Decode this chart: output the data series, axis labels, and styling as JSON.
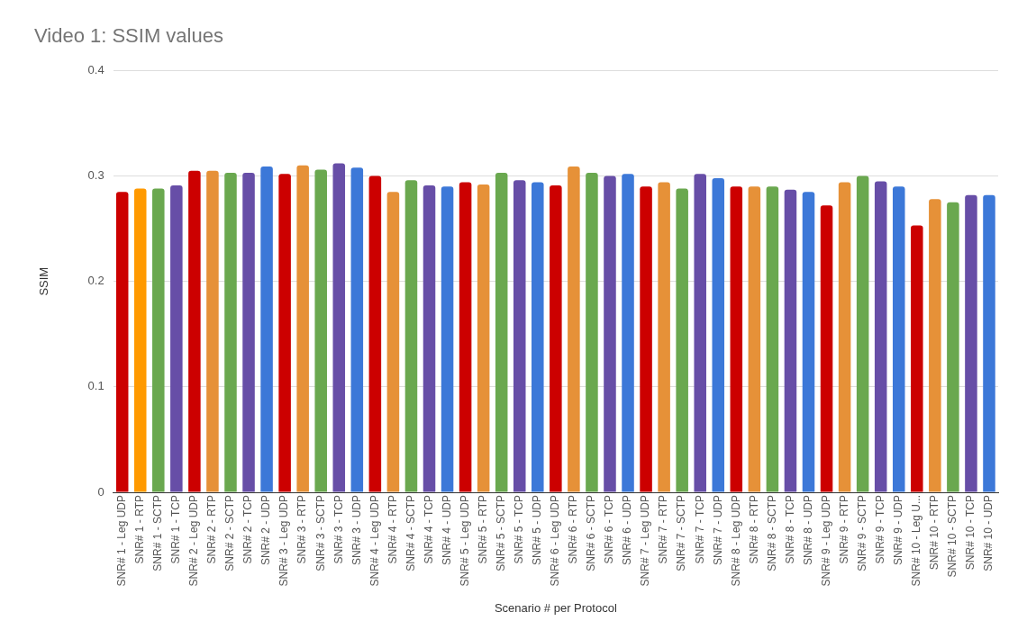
{
  "chart_data": {
    "type": "bar",
    "title": "Video 1: SSIM values",
    "xlabel": "Scenario # per Protocol",
    "ylabel": "SSIM",
    "categories": [
      "SNR# 1 - Leg UDP",
      "SNR# 1 - RTP",
      "SNR# 1 - SCTP",
      "SNR# 1 - TCP",
      "SNR# 2 - Leg UDP",
      "SNR# 2 - RTP",
      "SNR# 2 - SCTP",
      "SNR# 2 - TCP",
      "SNR# 2 - UDP",
      "SNR# 3 - Leg UDP",
      "SNR# 3 - RTP",
      "SNR# 3 - SCTP",
      "SNR# 3 - TCP",
      "SNR# 3 - UDP",
      "SNR# 4 - Leg UDP",
      "SNR# 4 - RTP",
      "SNR# 4 - SCTP",
      "SNR# 4 - TCP",
      "SNR# 4 - UDP",
      "SNR# 5 - Leg UDP",
      "SNR# 5 - RTP",
      "SNR# 5 - SCTP",
      "SNR# 5 - TCP",
      "SNR# 5 - UDP",
      "SNR# 6 - Leg UDP",
      "SNR# 6 - RTP",
      "SNR# 6 - SCTP",
      "SNR# 6 - TCP",
      "SNR# 6 - UDP",
      "SNR# 7 - Leg UDP",
      "SNR# 7 - RTP",
      "SNR# 7 - SCTP",
      "SNR# 7 - TCP",
      "SNR# 7 - UDP",
      "SNR# 8 - Leg UDP",
      "SNR# 8 - RTP",
      "SNR# 8 - SCTP",
      "SNR# 8 - TCP",
      "SNR# 8 - UDP",
      "SNR# 9 - Leg UDP",
      "SNR# 9 - RTP",
      "SNR# 9 - SCTP",
      "SNR# 9 - TCP",
      "SNR# 9 - UDP",
      "SNR# 10 - Leg U...",
      "SNR# 10 - RTP",
      "SNR# 10 - SCTP",
      "SNR# 10 - TCP",
      "SNR# 10 - UDP"
    ],
    "values": [
      0.285,
      0.288,
      0.288,
      0.291,
      0.305,
      0.305,
      0.303,
      0.303,
      0.309,
      0.302,
      0.31,
      0.306,
      0.312,
      0.308,
      0.3,
      0.285,
      0.296,
      0.291,
      0.29,
      0.294,
      0.292,
      0.303,
      0.296,
      0.294,
      0.291,
      0.309,
      0.303,
      0.3,
      0.302,
      0.29,
      0.294,
      0.288,
      0.302,
      0.298,
      0.29,
      0.29,
      0.29,
      0.287,
      0.285,
      0.272,
      0.294,
      0.3,
      0.295,
      0.29,
      0.253,
      0.278,
      0.275,
      0.282,
      0.282
    ],
    "colors": [
      "#cc0000",
      "#ff9900",
      "#6aa84f",
      "#674ea7",
      "#cc0000",
      "#e69138",
      "#6aa84f",
      "#674ea7",
      "#3c78d8",
      "#cc0000",
      "#e69138",
      "#6aa84f",
      "#674ea7",
      "#3c78d8",
      "#cc0000",
      "#e69138",
      "#6aa84f",
      "#674ea7",
      "#3c78d8",
      "#cc0000",
      "#e69138",
      "#6aa84f",
      "#674ea7",
      "#3c78d8",
      "#cc0000",
      "#e69138",
      "#6aa84f",
      "#674ea7",
      "#3c78d8",
      "#cc0000",
      "#e69138",
      "#6aa84f",
      "#674ea7",
      "#3c78d8",
      "#cc0000",
      "#e69138",
      "#6aa84f",
      "#674ea7",
      "#3c78d8",
      "#cc0000",
      "#e69138",
      "#6aa84f",
      "#674ea7",
      "#3c78d8",
      "#cc0000",
      "#e69138",
      "#6aa84f",
      "#674ea7",
      "#3c78d8"
    ],
    "ylim": [
      0,
      0.4
    ],
    "yticks": [
      0,
      0.1,
      0.2,
      0.3,
      0.4
    ],
    "grid": "y"
  }
}
